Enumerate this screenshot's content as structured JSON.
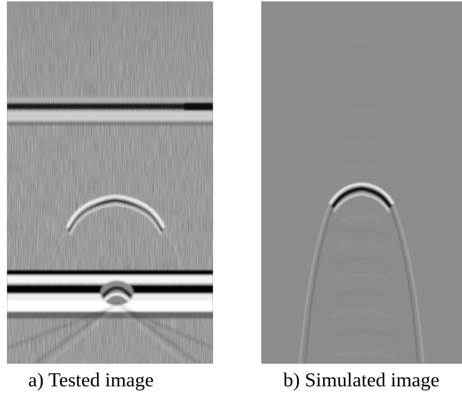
{
  "figure": {
    "panels": [
      {
        "caption": "a) Tested image",
        "kind": "gpr-b-scan-measured"
      },
      {
        "caption": "b) Simulated image",
        "kind": "gpr-b-scan-simulated"
      }
    ]
  }
}
